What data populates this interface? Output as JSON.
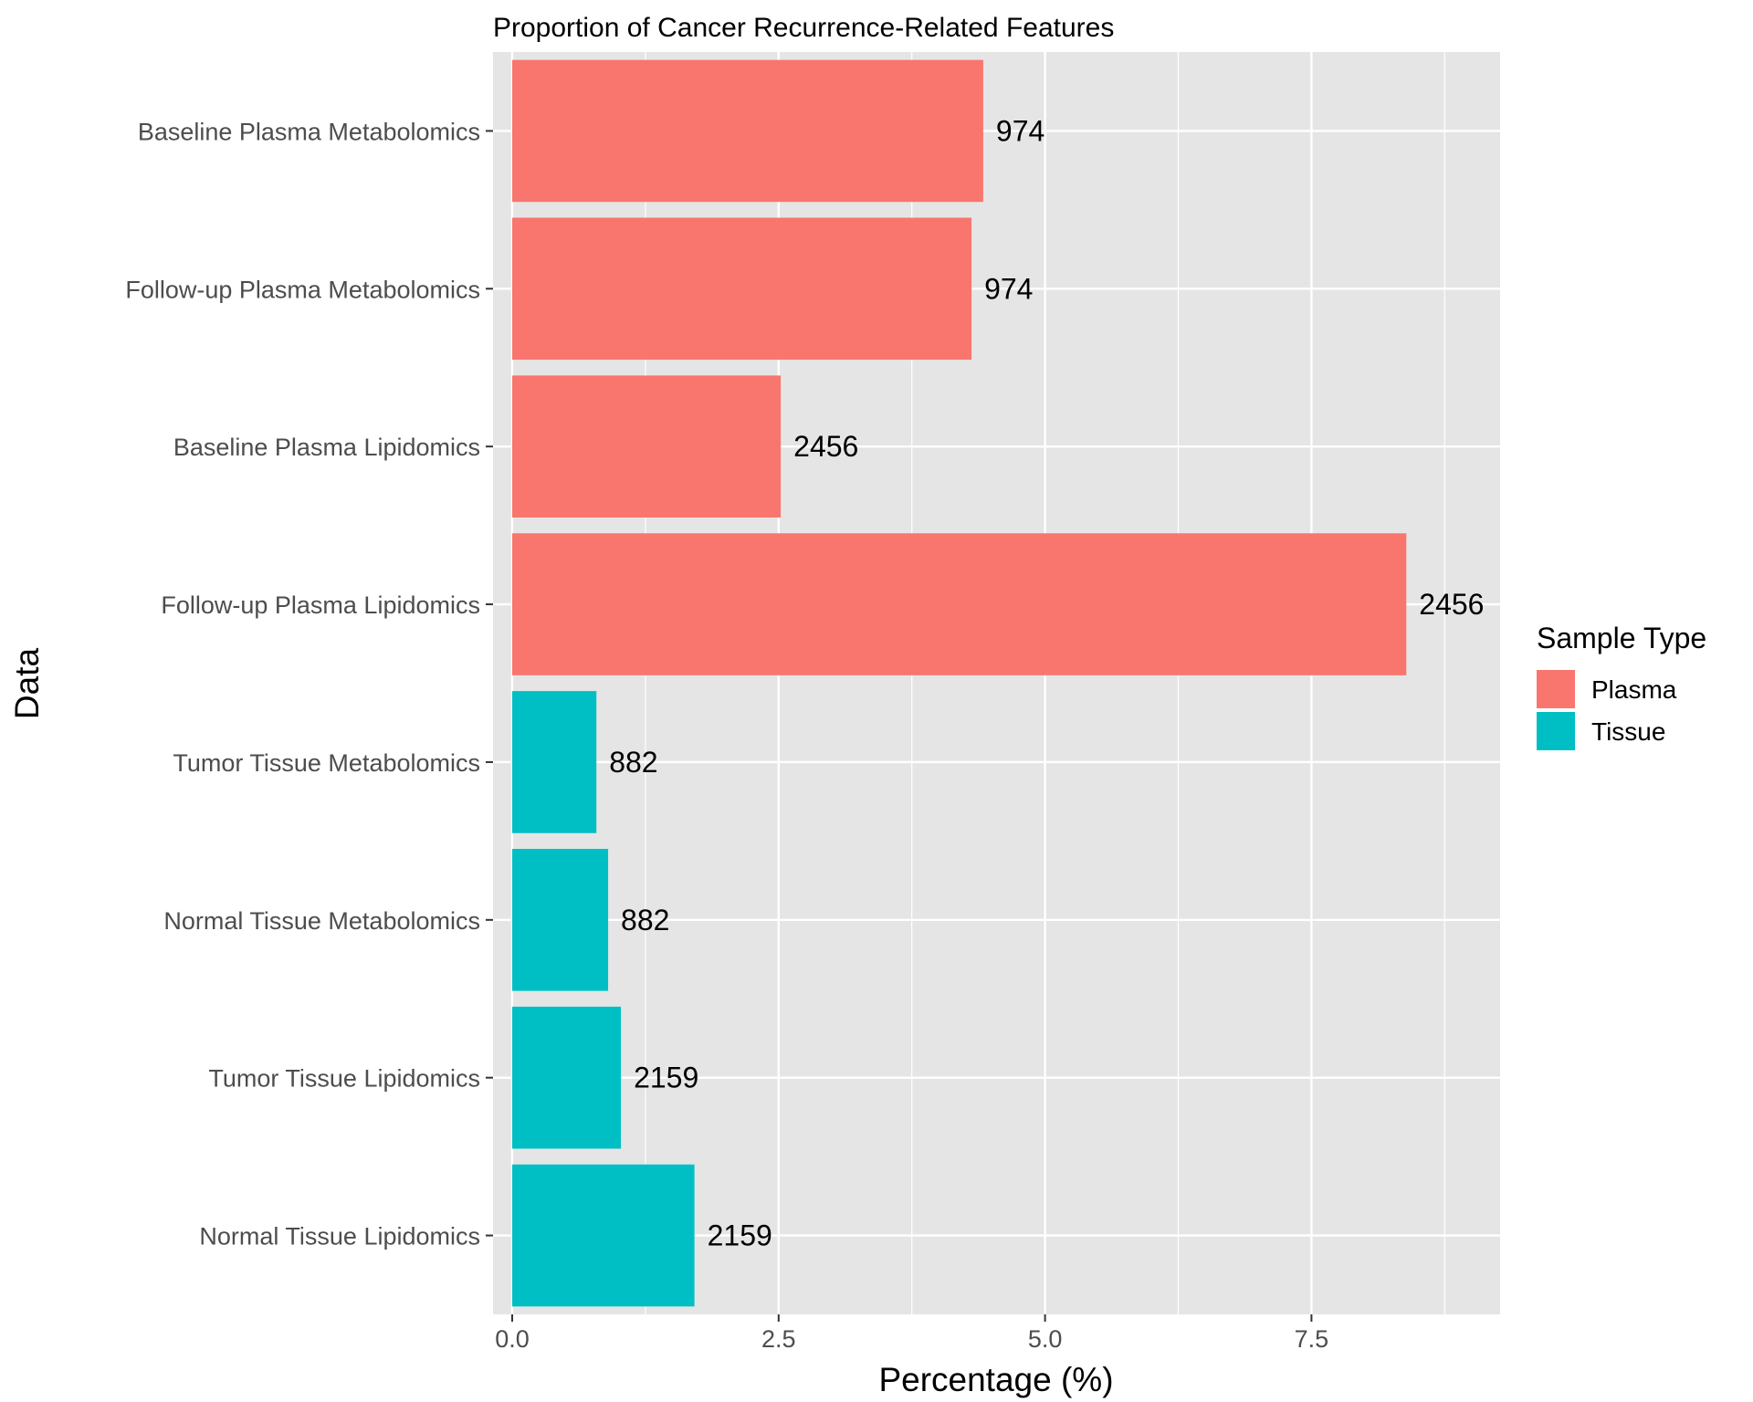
{
  "chart_data": {
    "type": "bar",
    "orientation": "horizontal",
    "title": "Proportion of Cancer Recurrence-Related Features",
    "xlabel": "Percentage (%)",
    "ylabel": "Data",
    "xlim": [
      -0.18,
      9.27
    ],
    "xticks": [
      0,
      2.5,
      5,
      7.5
    ],
    "xtick_labels": [
      "0.0",
      "2.5",
      "5.0",
      "7.5"
    ],
    "grid": true,
    "legend": {
      "title": "Sample Type",
      "position": "right",
      "entries": [
        {
          "name": "Plasma",
          "color": "#F8766D"
        },
        {
          "name": "Tissue",
          "color": "#00BFC4"
        }
      ]
    },
    "colors": {
      "Plasma": "#F8766D",
      "Tissue": "#00BFC4",
      "panel": "#E5E5E5",
      "grid": "#FFFFFF"
    },
    "categories": [
      "Baseline Plasma Metabolomics",
      "Follow-up Plasma Metabolomics",
      "Baseline Plasma Lipidomics",
      "Follow-up Plasma Lipidomics",
      "Tumor Tissue Metabolomics",
      "Normal Tissue Metabolomics",
      "Tumor Tissue Lipidomics",
      "Normal Tissue Lipidomics"
    ],
    "values": [
      4.42,
      4.31,
      2.52,
      8.39,
      0.79,
      0.9,
      1.02,
      1.71
    ],
    "groups": [
      "Plasma",
      "Plasma",
      "Plasma",
      "Plasma",
      "Tissue",
      "Tissue",
      "Tissue",
      "Tissue"
    ],
    "data_labels": [
      "974",
      "974",
      "2456",
      "2456",
      "882",
      "882",
      "2159",
      "2159"
    ]
  }
}
